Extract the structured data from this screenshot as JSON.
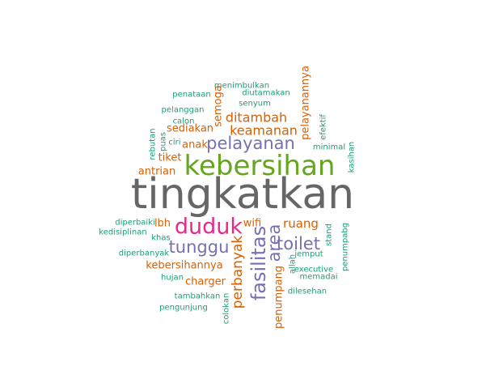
{
  "chart_data": {
    "type": "wordcloud",
    "colors": {
      "c1": "#1b9e77",
      "c2": "#d95f02",
      "c3": "#7570b3",
      "c4": "#e7298a",
      "c5": "#66a61e",
      "c6": "#666666"
    },
    "words": [
      {
        "text": "tingkatkan",
        "weight": 9,
        "color": "c6"
      },
      {
        "text": "kebersihan",
        "weight": 6,
        "color": "c5"
      },
      {
        "text": "duduk",
        "weight": 5,
        "color": "c4"
      },
      {
        "text": "fasilitas",
        "weight": 4,
        "color": "c3"
      },
      {
        "text": "tunggu",
        "weight": 4,
        "color": "c3"
      },
      {
        "text": "pelayanan",
        "weight": 4,
        "color": "c3"
      },
      {
        "text": "toilet",
        "weight": 4,
        "color": "c3"
      },
      {
        "text": "area",
        "weight": 4,
        "color": "c3"
      },
      {
        "text": "perbanyak",
        "weight": 3,
        "color": "c2"
      },
      {
        "text": "ditambah",
        "weight": 3,
        "color": "c2"
      },
      {
        "text": "keamanan",
        "weight": 3,
        "color": "c2"
      },
      {
        "text": "ruang",
        "weight": 3,
        "color": "c2"
      },
      {
        "text": "kebersihannya",
        "weight": 2,
        "color": "c2"
      },
      {
        "text": "charger",
        "weight": 2,
        "color": "c2"
      },
      {
        "text": "penumpang",
        "weight": 2,
        "color": "c2"
      },
      {
        "text": "pelayanannya",
        "weight": 2,
        "color": "c2"
      },
      {
        "text": "semoga",
        "weight": 2,
        "color": "c2"
      },
      {
        "text": "sediakan",
        "weight": 2,
        "color": "c2"
      },
      {
        "text": "anak",
        "weight": 2,
        "color": "c2"
      },
      {
        "text": "tiket",
        "weight": 2,
        "color": "c2"
      },
      {
        "text": "antrian",
        "weight": 2,
        "color": "c2"
      },
      {
        "text": "lbh",
        "weight": 2,
        "color": "c2"
      },
      {
        "text": "wifi",
        "weight": 2,
        "color": "c2"
      },
      {
        "text": "menimbulkan",
        "weight": 1,
        "color": "c1"
      },
      {
        "text": "penataan",
        "weight": 1,
        "color": "c1"
      },
      {
        "text": "diutamakan",
        "weight": 1,
        "color": "c1"
      },
      {
        "text": "senyum",
        "weight": 1,
        "color": "c1"
      },
      {
        "text": "pelanggan",
        "weight": 1,
        "color": "c1"
      },
      {
        "text": "calon",
        "weight": 1,
        "color": "c1"
      },
      {
        "text": "ciri",
        "weight": 1,
        "color": "c1"
      },
      {
        "text": "puas",
        "weight": 1,
        "color": "c1"
      },
      {
        "text": "rebutan",
        "weight": 1,
        "color": "c1"
      },
      {
        "text": "efektif",
        "weight": 1,
        "color": "c1"
      },
      {
        "text": "minimal",
        "weight": 1,
        "color": "c1"
      },
      {
        "text": "kasihan",
        "weight": 1,
        "color": "c1"
      },
      {
        "text": "diperbaiki",
        "weight": 1,
        "color": "c1"
      },
      {
        "text": "kedisiplinan",
        "weight": 1,
        "color": "c1"
      },
      {
        "text": "khas",
        "weight": 1,
        "color": "c1"
      },
      {
        "text": "diperbanyak",
        "weight": 1,
        "color": "c1"
      },
      {
        "text": "hujan",
        "weight": 1,
        "color": "c1"
      },
      {
        "text": "tambahkan",
        "weight": 1,
        "color": "c1"
      },
      {
        "text": "pengunjung",
        "weight": 1,
        "color": "c1"
      },
      {
        "text": "colokan",
        "weight": 1,
        "color": "c1"
      },
      {
        "text": "jemput",
        "weight": 1,
        "color": "c1"
      },
      {
        "text": "allah",
        "weight": 1,
        "color": "c1"
      },
      {
        "text": "executive",
        "weight": 1,
        "color": "c1"
      },
      {
        "text": "memadai",
        "weight": 1,
        "color": "c1"
      },
      {
        "text": "dilesehan",
        "weight": 1,
        "color": "c1"
      },
      {
        "text": "stand",
        "weight": 1,
        "color": "c1"
      },
      {
        "text": "penumpabg",
        "weight": 1,
        "color": "c1"
      }
    ]
  }
}
